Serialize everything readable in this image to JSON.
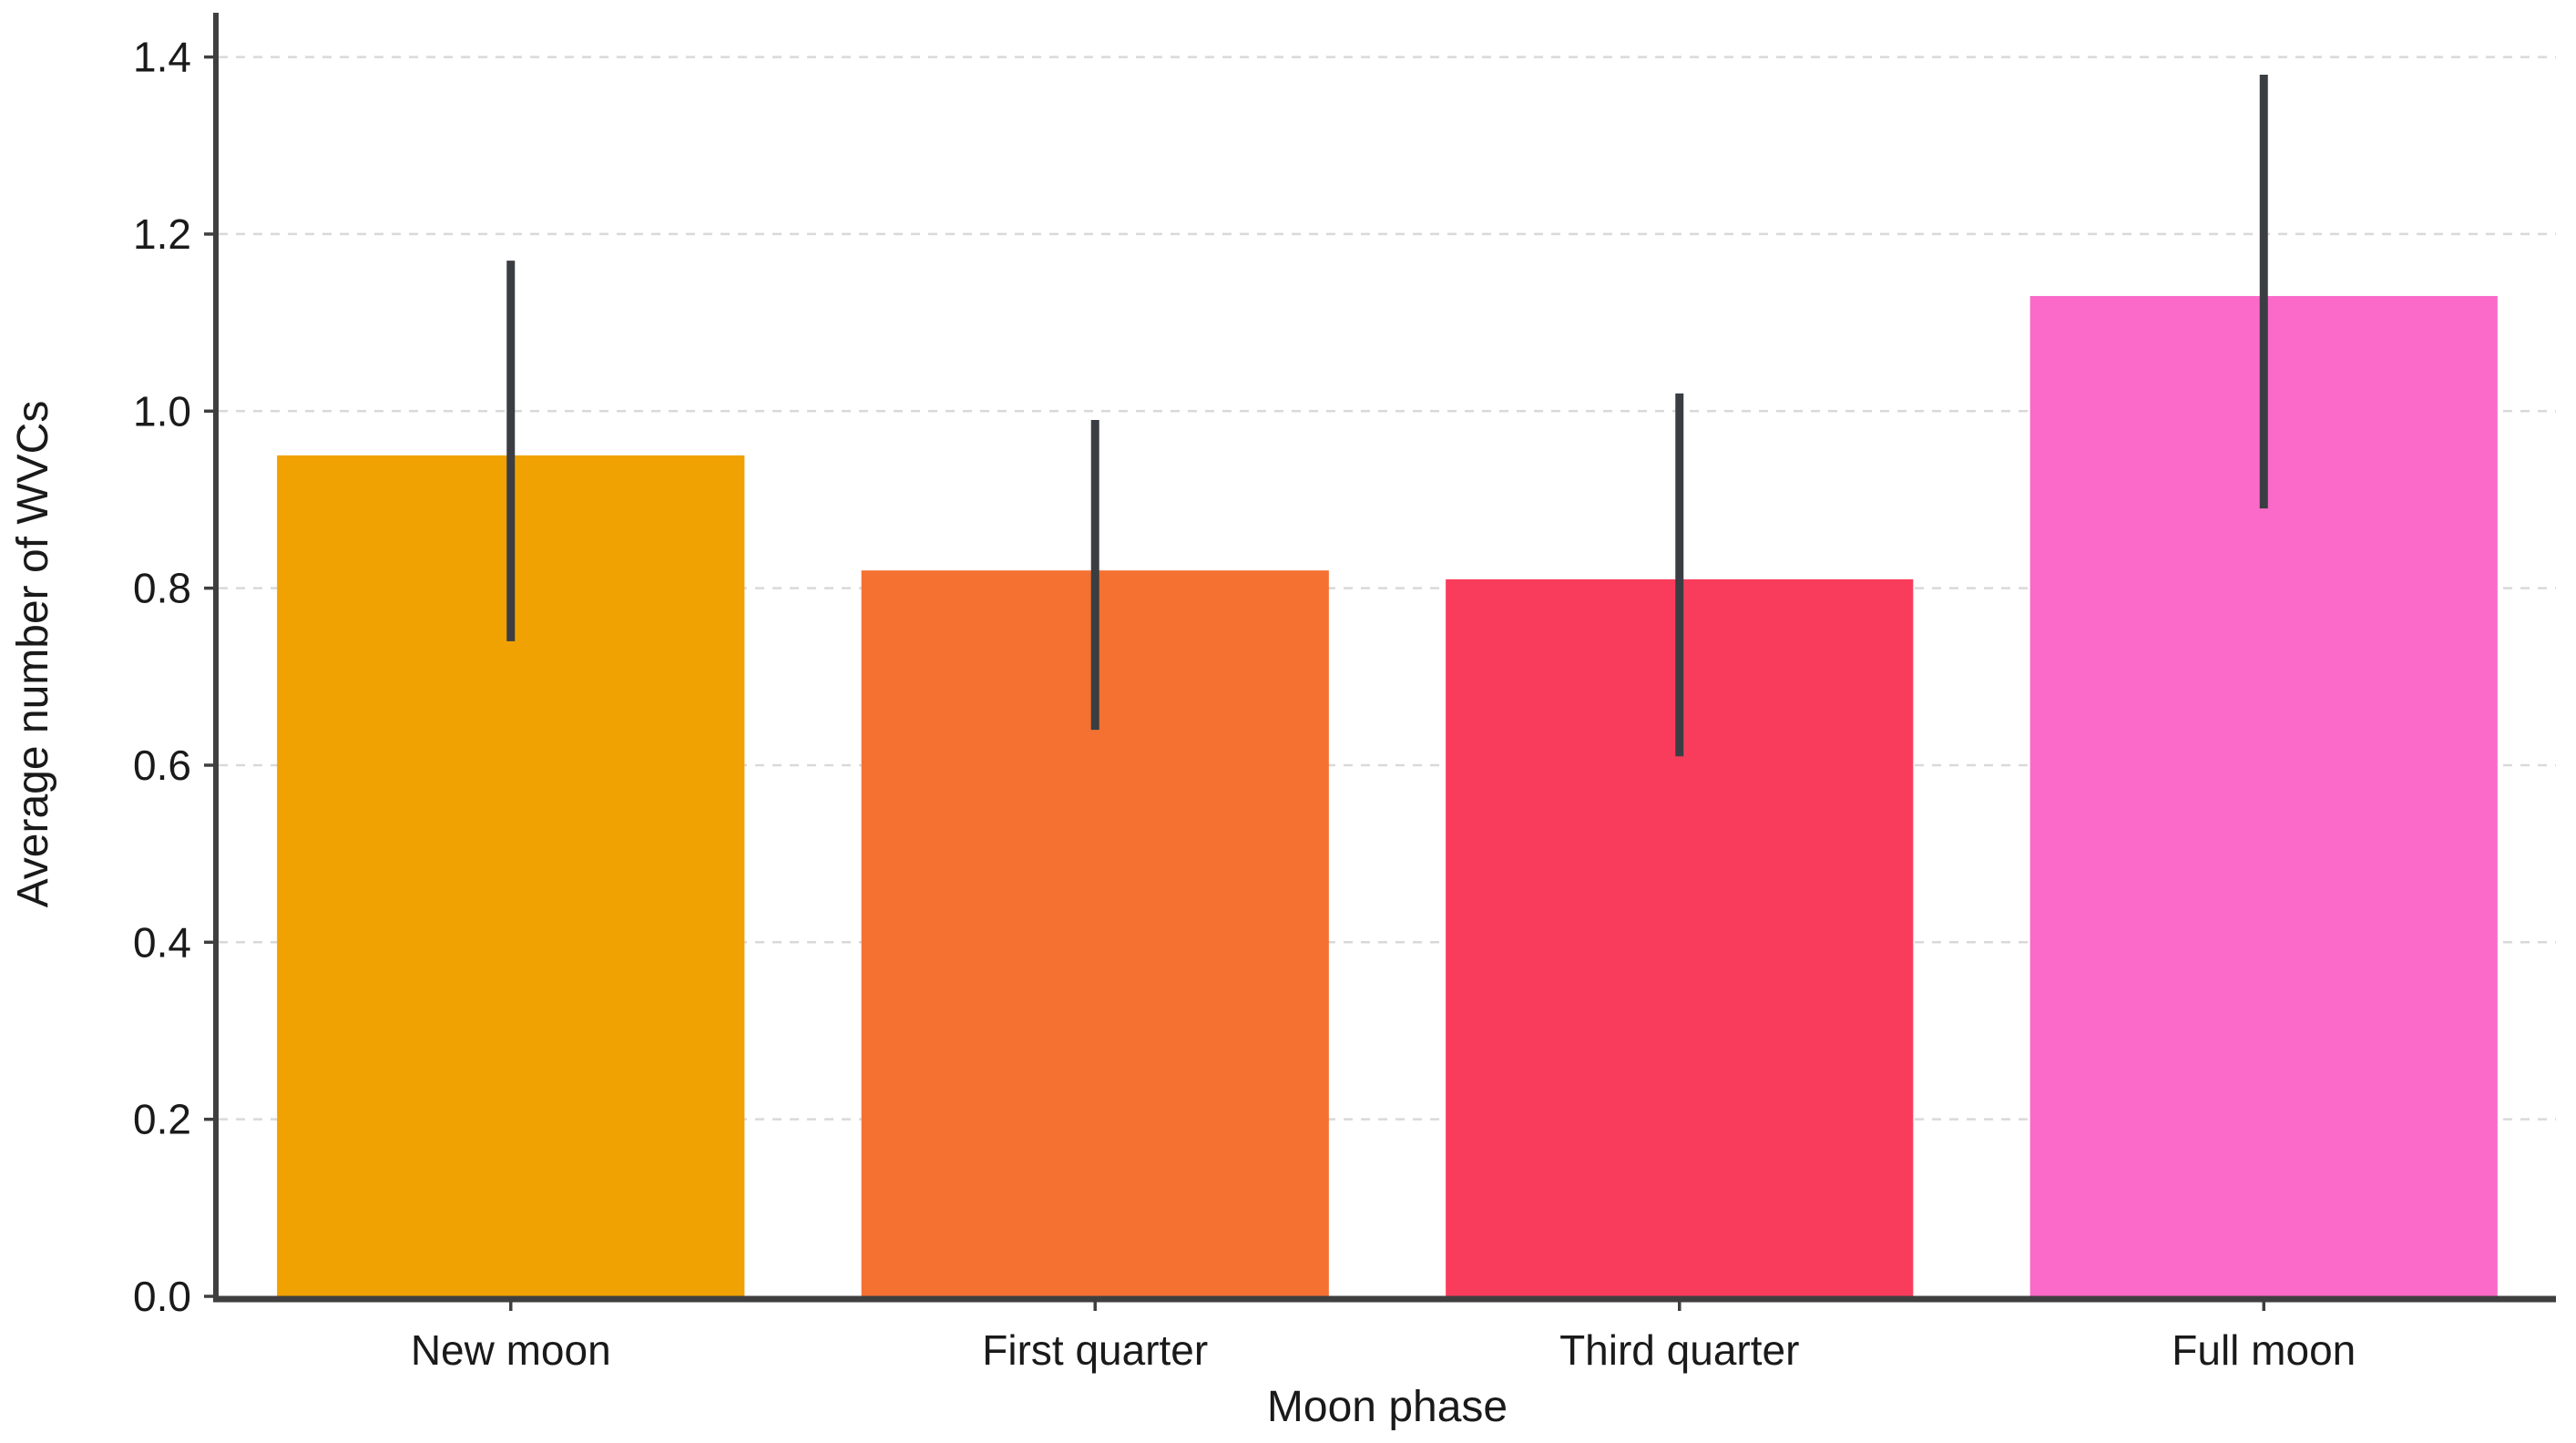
{
  "figure": {
    "xlabel": "Moon phase",
    "ylabel": "Average number of WVCs"
  },
  "chart_data": {
    "type": "bar",
    "categories": [
      "New moon",
      "First quarter",
      "Third quarter",
      "Full moon"
    ],
    "values": [
      0.95,
      0.82,
      0.81,
      1.13
    ],
    "error_low": [
      0.74,
      0.64,
      0.61,
      0.89
    ],
    "error_high": [
      1.17,
      0.99,
      1.02,
      1.38
    ],
    "title": "",
    "xlabel": "Moon phase",
    "ylabel": "Average number of WVCs",
    "ylim": [
      0,
      1.45
    ],
    "yticks": [
      "0.0",
      "0.2",
      "0.4",
      "0.6",
      "0.8",
      "1.0",
      "1.2",
      "1.4"
    ],
    "grid": "horizontal-dashed",
    "legend": "none",
    "bar_colors": [
      "#F0A202",
      "#F47132",
      "#FA3C5C",
      "#FB6AC8"
    ],
    "error_bar_color": "#3A3E43",
    "axis_color": "#3F3F3F",
    "grid_color": "#D9D9D9",
    "text_color": "#1A1A1A"
  }
}
